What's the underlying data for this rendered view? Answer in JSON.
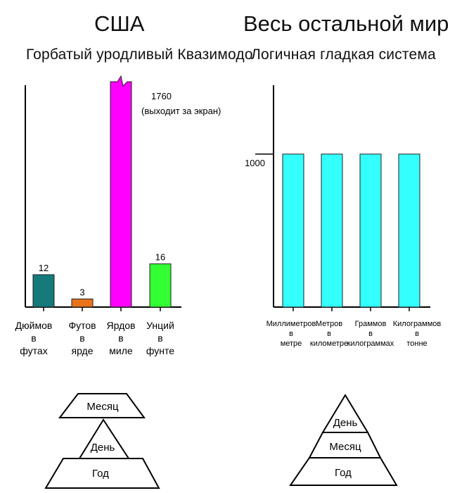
{
  "headings": {
    "left_title": "США",
    "right_title": "Весь остальной мир",
    "left_subtitle": "Горбатый  уродливый Квазимодо",
    "right_subtitle": "Логичная гладкая система"
  },
  "chart_data": [
    {
      "type": "bar",
      "title": "США",
      "subtitle": "Горбатый  уродливый Квазимодо",
      "categories": [
        [
          "Дюймов",
          "в",
          "футах"
        ],
        [
          "Футов",
          "в",
          "ярде"
        ],
        [
          "Ярдов",
          "в",
          "миле"
        ],
        [
          "Унций",
          "в",
          "фунте"
        ]
      ],
      "values": [
        12,
        3,
        1760,
        16
      ],
      "value_labels": [
        "12",
        "3",
        "1760",
        "16"
      ],
      "overflow_note": "(выходит за экран)",
      "colors": [
        "#147a7a",
        "#e8731a",
        "#ff00ff",
        "#33ff33"
      ],
      "ylim_visible": [
        0,
        85
      ],
      "grid": false,
      "legend": "none"
    },
    {
      "type": "bar",
      "title": "Весь остальной мир",
      "subtitle": "Логичная гладкая система",
      "categories": [
        [
          "Миллиметров",
          "в",
          "метре"
        ],
        [
          "Метров",
          "в",
          "километре"
        ],
        [
          "Граммов",
          "в",
          "килограммах"
        ],
        [
          "Килограммов",
          "в",
          "тонне"
        ]
      ],
      "values": [
        1000,
        1000,
        1000,
        1000
      ],
      "ytick_labels": [
        "1000"
      ],
      "ylim": [
        0,
        1450
      ],
      "colors": [
        "#33ffff",
        "#33ffff",
        "#33ffff",
        "#33ffff"
      ],
      "grid": false,
      "legend": "none"
    }
  ],
  "pyramids": {
    "left": {
      "top": "Месяц",
      "middle": "День",
      "bottom": "Год",
      "fill": "#ffffff",
      "stroke": "#000000"
    },
    "right": {
      "top": "День",
      "middle": "Месяц",
      "bottom": "Год",
      "fill": "#ffffff",
      "stroke": "#000000"
    }
  }
}
